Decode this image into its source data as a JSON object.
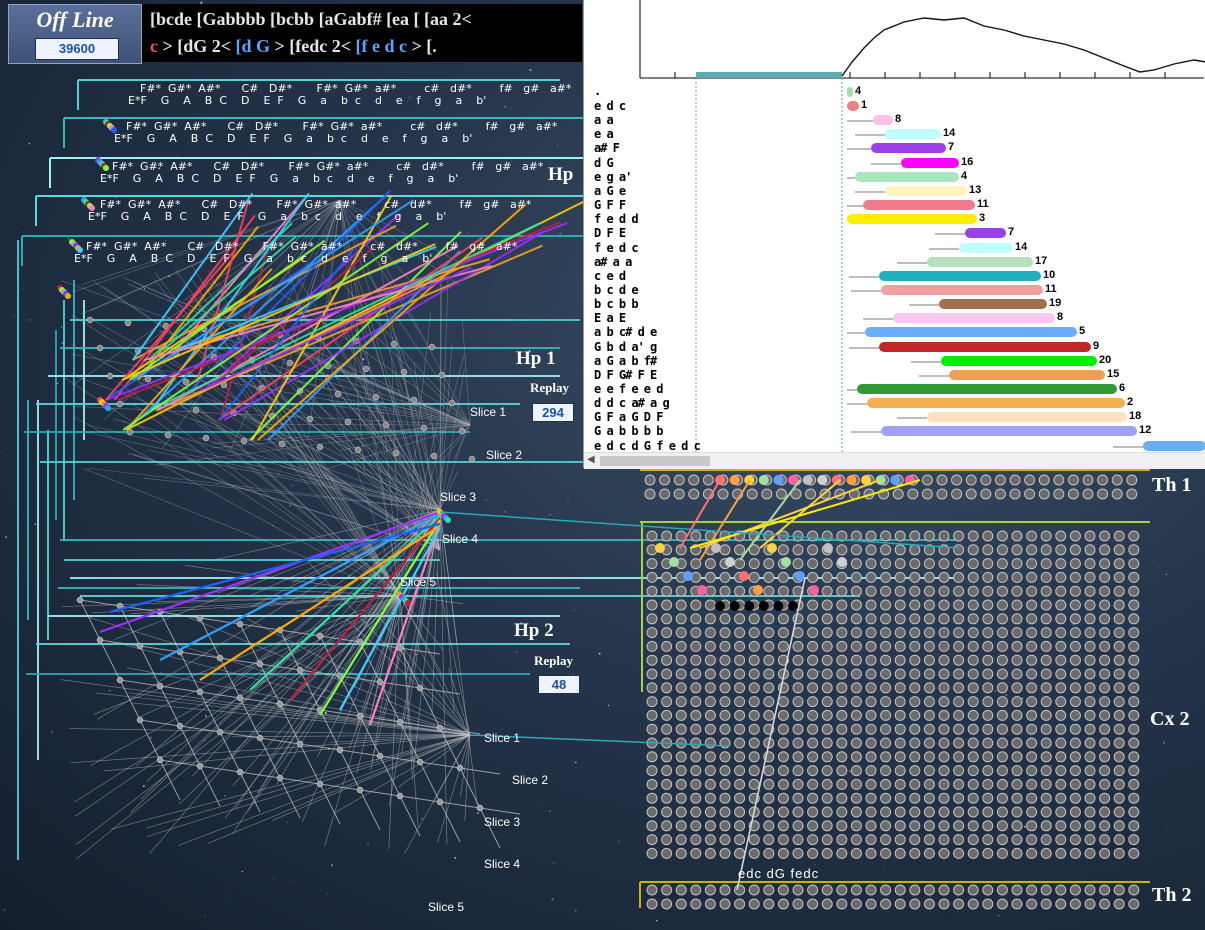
{
  "header": {
    "mode": "Off Line",
    "counter": "39600",
    "sequence_line1": [
      "[bcde",
      "[Gabbbb",
      "[bcbb",
      "[aGabf#",
      "[ea",
      "[",
      "[aa",
      "2<"
    ],
    "sequence_line2_start": "c",
    "sequence_line2": [
      "> [dG 2<",
      "[d G",
      "> [fedc 2<",
      "[f e d c",
      "> [."
    ]
  },
  "colors": {
    "background": "#24344a",
    "accent_cyan": "#4dd2d8",
    "gold": "#e0b000",
    "counter_text": "#1c4fb0",
    "seq_red": "#ff4d4d",
    "seq_blue": "#58a6ff"
  },
  "keyboard": {
    "sharps": "F#*  G#*  A#*      C#   D#*       F#*  G#*  a#*        c#   d#*        f#   g#   a#*",
    "naturals": "E*F    G    A    B  C    D    E  F    G    a    b  c    d    e    f    g    a    b'"
  },
  "hp1": {
    "label": "Hp 1",
    "replay_label": "Replay",
    "replay_value": "294",
    "slices": [
      "Slice 1",
      "Slice 2",
      "Slice 3",
      "Slice 4",
      "Slice 5"
    ]
  },
  "hp2": {
    "label": "Hp 2",
    "replay_label": "Replay",
    "replay_value": "48",
    "slices": [
      "Slice 1",
      "Slice 2",
      "Slice 3",
      "Slice 4",
      "Slice 5"
    ]
  },
  "hp_top_label": "Hp",
  "right_labels": {
    "th1": "Th 1",
    "cx2": "Cx 2",
    "th2": "Th 2"
  },
  "grid_sequence": "edc  dG  fedc",
  "sequence_panel": {
    "first_label": ".",
    "rows": [
      {
        "label": "e d c",
        "num": 1,
        "color": "#f08080",
        "start": 846,
        "end": 858
      },
      {
        "label": "a a",
        "num": 8,
        "color": "#ffc0e8",
        "start": 872,
        "end": 892
      },
      {
        "label": "e a",
        "num": 14,
        "color": "#c0ffff",
        "start": 884,
        "end": 940
      },
      {
        "label": "a# F",
        "num": 7,
        "color": "#9b3fe8",
        "start": 870,
        "end": 945
      },
      {
        "label": "d G",
        "num": 16,
        "color": "#ff00ff",
        "start": 900,
        "end": 958
      },
      {
        "label": "e g a'",
        "num": 4,
        "color": "#a8e6c0",
        "start": 854,
        "end": 958
      },
      {
        "label": "a G e",
        "num": 13,
        "color": "#fff4c0",
        "start": 884,
        "end": 966
      },
      {
        "label": "G F F",
        "num": 11,
        "color": "#f07b8b",
        "start": 862,
        "end": 974
      },
      {
        "label": "f e d d",
        "num": 3,
        "color": "#ffee00",
        "start": 846,
        "end": 976
      },
      {
        "label": "D F E",
        "num": 7,
        "color": "#9b3fe8",
        "start": 964,
        "end": 1005
      },
      {
        "label": "f e d c",
        "num": 14,
        "color": "#c0ffff",
        "start": 958,
        "end": 1012
      },
      {
        "label": "a# a a",
        "num": 17,
        "color": "#b8e0b8",
        "start": 926,
        "end": 1032
      },
      {
        "label": "c e d",
        "num": 10,
        "color": "#20b0c0",
        "start": 878,
        "end": 1040
      },
      {
        "label": "b c d e",
        "num": 11,
        "color": "#f0a0a0",
        "start": 880,
        "end": 1042
      },
      {
        "label": "b c b b",
        "num": 19,
        "color": "#a07050",
        "start": 938,
        "end": 1046
      },
      {
        "label": "E a E",
        "num": 8,
        "color": "#f8c8f0",
        "start": 892,
        "end": 1054
      },
      {
        "label": "a b c# d e",
        "num": 5,
        "color": "#6aaeff",
        "start": 864,
        "end": 1076
      },
      {
        "label": "G b d a' g",
        "num": 9,
        "color": "#c02828",
        "start": 878,
        "end": 1090
      },
      {
        "label": "a G a b f#",
        "num": 20,
        "color": "#00ee00",
        "start": 940,
        "end": 1096
      },
      {
        "label": "D F G# F E",
        "num": 15,
        "color": "#f0a050",
        "start": 948,
        "end": 1104
      },
      {
        "label": "e e f e e d",
        "num": 6,
        "color": "#339933",
        "start": 856,
        "end": 1116
      },
      {
        "label": "d d c a# a g",
        "num": 2,
        "color": "#f4b050",
        "start": 866,
        "end": 1124
      },
      {
        "label": "G F a G D F",
        "num": 18,
        "color": "#ffe0c0",
        "start": 926,
        "end": 1126
      },
      {
        "label": "G a b b b b",
        "num": 12,
        "color": "#a0a0ff",
        "start": 880,
        "end": 1136
      },
      {
        "label": "e d c  d G  f e d c",
        "num": "",
        "color": "#6ab0f0",
        "start": 1142,
        "end": 1205
      }
    ]
  }
}
